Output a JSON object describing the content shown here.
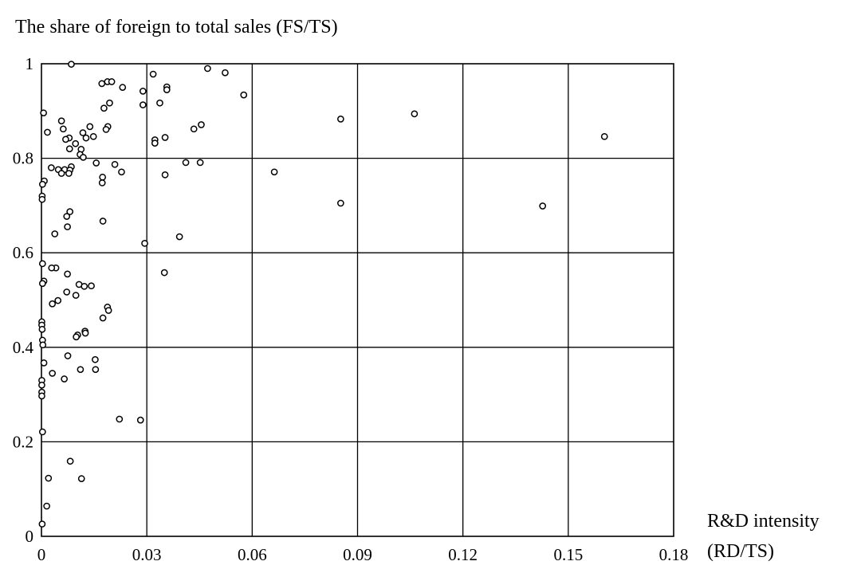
{
  "chart_data": {
    "type": "scatter",
    "title": "The share of foreign to total sales (FS/TS)",
    "xlabel": "R&D intensity",
    "xlabel_line2": "(RD/TS)",
    "ylabel": "",
    "xlim": [
      0,
      0.18
    ],
    "ylim": [
      0,
      1
    ],
    "xticks": [
      0,
      0.03,
      0.06,
      0.09,
      0.12,
      0.15,
      0.18
    ],
    "xtick_labels": [
      "0",
      "0.03",
      "0.06",
      "0.09",
      "0.12",
      "0.15",
      "0.18"
    ],
    "yticks": [
      0,
      0.2,
      0.4,
      0.6,
      0.8,
      1
    ],
    "ytick_labels": [
      "0",
      "0.2",
      "0.4",
      "0.6",
      "0.8",
      "1"
    ],
    "grid": true,
    "legend": "none",
    "points": [
      [
        0.0085,
        0.999
      ],
      [
        0.0473,
        0.99
      ],
      [
        0.0523,
        0.981
      ],
      [
        0.0318,
        0.978
      ],
      [
        0.0188,
        0.962
      ],
      [
        0.02,
        0.962
      ],
      [
        0.0172,
        0.958
      ],
      [
        0.0357,
        0.951
      ],
      [
        0.0357,
        0.945
      ],
      [
        0.0231,
        0.95
      ],
      [
        0.0289,
        0.942
      ],
      [
        0.0576,
        0.934
      ],
      [
        0.0194,
        0.917
      ],
      [
        0.0337,
        0.917
      ],
      [
        0.0289,
        0.913
      ],
      [
        0.0178,
        0.906
      ],
      [
        0.0006,
        0.896
      ],
      [
        0.0852,
        0.883
      ],
      [
        0.0057,
        0.879
      ],
      [
        0.1062,
        0.894
      ],
      [
        0.0455,
        0.871
      ],
      [
        0.0189,
        0.867
      ],
      [
        0.0138,
        0.867
      ],
      [
        0.0434,
        0.862
      ],
      [
        0.0062,
        0.862
      ],
      [
        0.0184,
        0.861
      ],
      [
        0.0017,
        0.855
      ],
      [
        0.0118,
        0.854
      ],
      [
        0.0148,
        0.846
      ],
      [
        0.0127,
        0.843
      ],
      [
        0.0352,
        0.844
      ],
      [
        0.1603,
        0.846
      ],
      [
        0.0079,
        0.843
      ],
      [
        0.0069,
        0.84
      ],
      [
        0.0323,
        0.839
      ],
      [
        0.0323,
        0.832
      ],
      [
        0.0097,
        0.831
      ],
      [
        0.008,
        0.82
      ],
      [
        0.0113,
        0.819
      ],
      [
        0.011,
        0.808
      ],
      [
        0.0119,
        0.802
      ],
      [
        0.0411,
        0.791
      ],
      [
        0.0452,
        0.791
      ],
      [
        0.0156,
        0.79
      ],
      [
        0.0209,
        0.787
      ],
      [
        0.0085,
        0.782
      ],
      [
        0.0028,
        0.78
      ],
      [
        0.0066,
        0.776
      ],
      [
        0.0048,
        0.776
      ],
      [
        0.0081,
        0.775
      ],
      [
        0.0228,
        0.771
      ],
      [
        0.0663,
        0.771
      ],
      [
        0.0057,
        0.768
      ],
      [
        0.0078,
        0.768
      ],
      [
        0.0352,
        0.765
      ],
      [
        0.0174,
        0.76
      ],
      [
        0.0173,
        0.748
      ],
      [
        0.0008,
        0.752
      ],
      [
        0.0003,
        0.745
      ],
      [
        0.0002,
        0.72
      ],
      [
        0.0002,
        0.713
      ],
      [
        0.0852,
        0.705
      ],
      [
        0.1427,
        0.699
      ],
      [
        0.0081,
        0.687
      ],
      [
        0.0072,
        0.677
      ],
      [
        0.0175,
        0.667
      ],
      [
        0.0074,
        0.655
      ],
      [
        0.0038,
        0.64
      ],
      [
        0.0393,
        0.634
      ],
      [
        0.0294,
        0.62
      ],
      [
        0.0003,
        0.577
      ],
      [
        0.0041,
        0.568
      ],
      [
        0.0029,
        0.568
      ],
      [
        0.035,
        0.558
      ],
      [
        0.0074,
        0.555
      ],
      [
        0.0007,
        0.54
      ],
      [
        0.0003,
        0.535
      ],
      [
        0.0107,
        0.533
      ],
      [
        0.0142,
        0.53
      ],
      [
        0.0122,
        0.529
      ],
      [
        0.0072,
        0.517
      ],
      [
        0.0098,
        0.51
      ],
      [
        0.0031,
        0.492
      ],
      [
        0.0047,
        0.499
      ],
      [
        0.0188,
        0.485
      ],
      [
        0.0191,
        0.478
      ],
      [
        0.0175,
        0.462
      ],
      [
        0.0001,
        0.454
      ],
      [
        0.0001,
        0.447
      ],
      [
        0.0002,
        0.438
      ],
      [
        0.0124,
        0.434
      ],
      [
        0.0125,
        0.43
      ],
      [
        0.0103,
        0.426
      ],
      [
        0.0099,
        0.422
      ],
      [
        0.0003,
        0.415
      ],
      [
        0.0004,
        0.405
      ],
      [
        0.0075,
        0.382
      ],
      [
        0.0153,
        0.374
      ],
      [
        0.0007,
        0.367
      ],
      [
        0.0154,
        0.353
      ],
      [
        0.0111,
        0.353
      ],
      [
        0.0031,
        0.345
      ],
      [
        0.0065,
        0.333
      ],
      [
        0.0001,
        0.33
      ],
      [
        0.0001,
        0.32
      ],
      [
        0.0001,
        0.305
      ],
      [
        0.0001,
        0.297
      ],
      [
        0.0222,
        0.248
      ],
      [
        0.0282,
        0.246
      ],
      [
        0.0003,
        0.221
      ],
      [
        0.0082,
        0.159
      ],
      [
        0.002,
        0.123
      ],
      [
        0.0114,
        0.122
      ],
      [
        0.0015,
        0.064
      ],
      [
        0.0002,
        0.026
      ]
    ]
  }
}
